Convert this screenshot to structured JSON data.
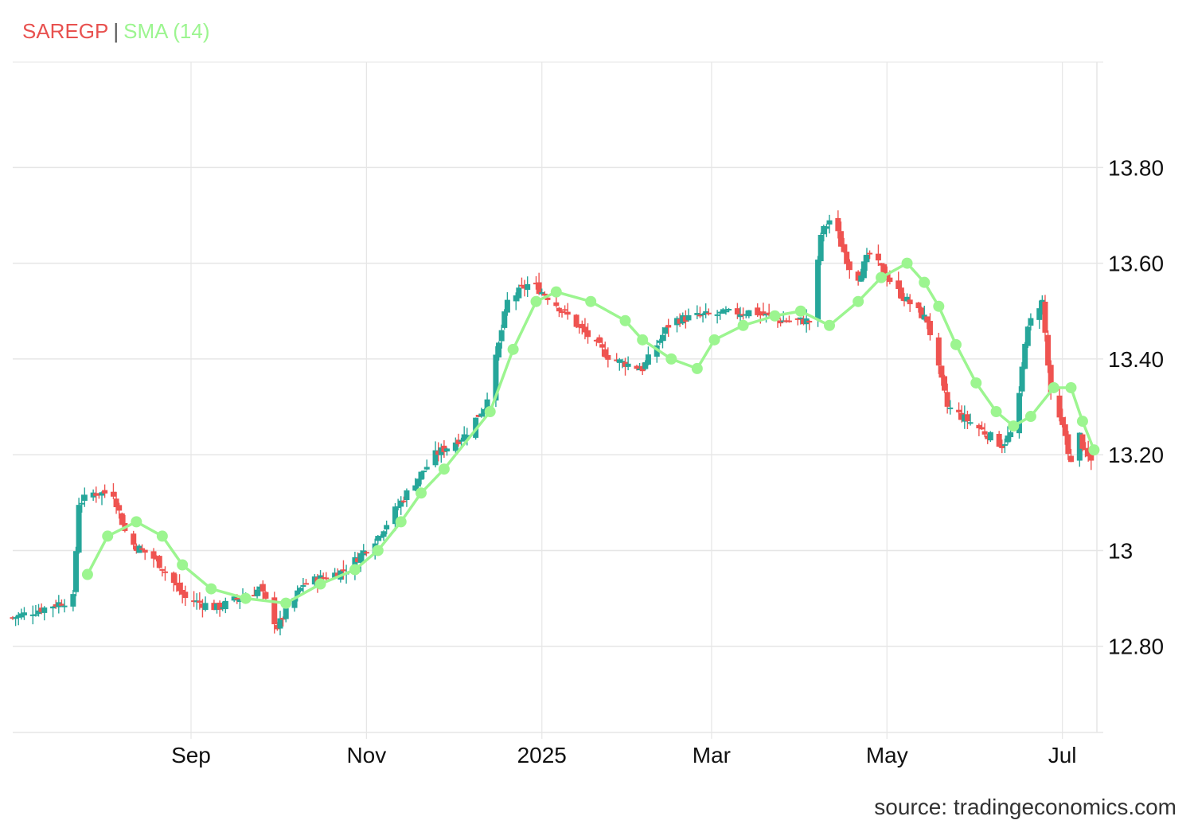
{
  "legend": {
    "symbol": "SAREGP",
    "separator": "|",
    "indicator": "SMA (14)",
    "symbol_color": "#e8514f",
    "indicator_color": "#9cf590"
  },
  "source": "source: tradingeconomics.com",
  "colors": {
    "up": "#26a69a",
    "down": "#ef5350",
    "sma": "#9cf590",
    "grid": "#e6e6e6"
  },
  "chart_data": {
    "type": "candlestick",
    "title": "",
    "xlabel": "",
    "ylabel": "",
    "x_range": [
      "2024-07-01",
      "2025-07-13"
    ],
    "ylim": [
      12.62,
      14.02
    ],
    "grid": true,
    "legend_position": "top-left",
    "y_ticks": [
      {
        "value": 12.8,
        "label": "12.80"
      },
      {
        "value": 13.0,
        "label": "13"
      },
      {
        "value": 13.2,
        "label": "13.20"
      },
      {
        "value": 13.4,
        "label": "13.40"
      },
      {
        "value": 13.6,
        "label": "13.60"
      },
      {
        "value": 13.8,
        "label": "13.80"
      }
    ],
    "x_ticks": [
      {
        "date": "2024-09-01",
        "label": "Sep"
      },
      {
        "date": "2024-11-01",
        "label": "Nov"
      },
      {
        "date": "2025-01-01",
        "label": "2025"
      },
      {
        "date": "2025-03-01",
        "label": "Mar"
      },
      {
        "date": "2025-05-01",
        "label": "May"
      },
      {
        "date": "2025-07-01",
        "label": "Jul"
      }
    ],
    "close_keypoints": [
      [
        "2024-07-01",
        12.86
      ],
      [
        "2024-07-12",
        12.88
      ],
      [
        "2024-07-22",
        12.9
      ],
      [
        "2024-07-24",
        13.1
      ],
      [
        "2024-07-29",
        13.12
      ],
      [
        "2024-08-05",
        13.12
      ],
      [
        "2024-08-10",
        13.02
      ],
      [
        "2024-08-20",
        12.98
      ],
      [
        "2024-08-30",
        12.9
      ],
      [
        "2024-09-10",
        12.88
      ],
      [
        "2024-09-25",
        12.92
      ],
      [
        "2024-10-01",
        12.84
      ],
      [
        "2024-10-10",
        12.93
      ],
      [
        "2024-10-25",
        12.96
      ],
      [
        "2024-11-05",
        13.03
      ],
      [
        "2024-11-15",
        13.12
      ],
      [
        "2024-11-25",
        13.2
      ],
      [
        "2024-12-05",
        13.24
      ],
      [
        "2024-12-12",
        13.3
      ],
      [
        "2024-12-16",
        13.4
      ],
      [
        "2024-12-20",
        13.52
      ],
      [
        "2024-12-28",
        13.56
      ],
      [
        "2025-01-05",
        13.52
      ],
      [
        "2025-01-15",
        13.46
      ],
      [
        "2025-01-25",
        13.4
      ],
      [
        "2025-02-05",
        13.38
      ],
      [
        "2025-02-15",
        13.48
      ],
      [
        "2025-02-25",
        13.49
      ],
      [
        "2025-03-15",
        13.5
      ],
      [
        "2025-03-25",
        13.48
      ],
      [
        "2025-04-05",
        13.48
      ],
      [
        "2025-04-08",
        13.66
      ],
      [
        "2025-04-12",
        13.7
      ],
      [
        "2025-04-15",
        13.64
      ],
      [
        "2025-04-20",
        13.56
      ],
      [
        "2025-04-25",
        13.62
      ],
      [
        "2025-05-05",
        13.54
      ],
      [
        "2025-05-15",
        13.48
      ],
      [
        "2025-05-22",
        13.3
      ],
      [
        "2025-06-01",
        13.26
      ],
      [
        "2025-06-10",
        13.22
      ],
      [
        "2025-06-15",
        13.26
      ],
      [
        "2025-06-18",
        13.44
      ],
      [
        "2025-06-21",
        13.5
      ],
      [
        "2025-06-24",
        13.52
      ],
      [
        "2025-06-27",
        13.32
      ],
      [
        "2025-07-02",
        13.24
      ],
      [
        "2025-07-05",
        13.15
      ],
      [
        "2025-07-07",
        13.24
      ],
      [
        "2025-07-09",
        13.2
      ],
      [
        "2025-07-12",
        13.18
      ]
    ],
    "sma_points": [
      [
        "2024-07-27",
        12.95
      ],
      [
        "2024-08-03",
        13.03
      ],
      [
        "2024-08-13",
        13.06
      ],
      [
        "2024-08-22",
        13.03
      ],
      [
        "2024-08-29",
        12.97
      ],
      [
        "2024-09-08",
        12.92
      ],
      [
        "2024-09-20",
        12.9
      ],
      [
        "2024-10-04",
        12.89
      ],
      [
        "2024-10-16",
        12.93
      ],
      [
        "2024-10-28",
        12.96
      ],
      [
        "2024-11-05",
        13.0
      ],
      [
        "2024-11-13",
        13.06
      ],
      [
        "2024-11-20",
        13.12
      ],
      [
        "2024-11-28",
        13.17
      ],
      [
        "2024-12-14",
        13.29
      ],
      [
        "2024-12-22",
        13.42
      ],
      [
        "2024-12-30",
        13.52
      ],
      [
        "2025-01-06",
        13.54
      ],
      [
        "2025-01-18",
        13.52
      ],
      [
        "2025-01-30",
        13.48
      ],
      [
        "2025-02-05",
        13.44
      ],
      [
        "2025-02-15",
        13.4
      ],
      [
        "2025-02-24",
        13.38
      ],
      [
        "2025-03-02",
        13.44
      ],
      [
        "2025-03-12",
        13.47
      ],
      [
        "2025-03-23",
        13.49
      ],
      [
        "2025-04-01",
        13.5
      ],
      [
        "2025-04-11",
        13.47
      ],
      [
        "2025-04-21",
        13.52
      ],
      [
        "2025-04-29",
        13.57
      ],
      [
        "2025-05-08",
        13.6
      ],
      [
        "2025-05-14",
        13.56
      ],
      [
        "2025-05-19",
        13.51
      ],
      [
        "2025-05-25",
        13.43
      ],
      [
        "2025-06-01",
        13.35
      ],
      [
        "2025-06-08",
        13.29
      ],
      [
        "2025-06-14",
        13.26
      ],
      [
        "2025-06-20",
        13.28
      ],
      [
        "2025-06-28",
        13.34
      ],
      [
        "2025-07-04",
        13.34
      ],
      [
        "2025-07-08",
        13.27
      ],
      [
        "2025-07-12",
        13.21
      ]
    ]
  }
}
